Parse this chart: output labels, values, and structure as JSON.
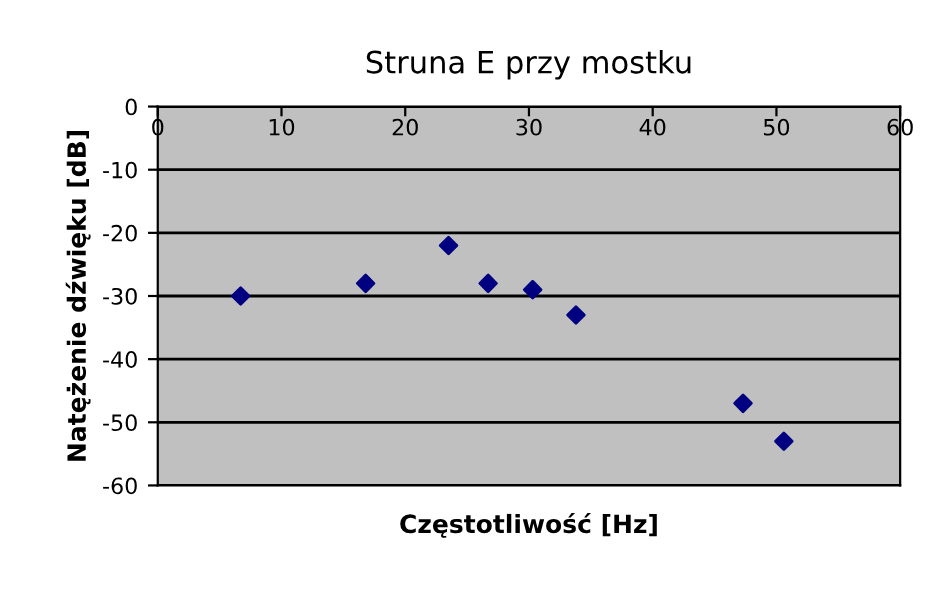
{
  "chart_data": {
    "type": "scatter",
    "title": "Struna E przy mostku",
    "xlabel": "Częstotliwość [Hz]",
    "ylabel": "Natężenie dźwięku [dB]",
    "x": [
      6.7,
      16.8,
      23.5,
      26.7,
      30.3,
      33.8,
      47.3,
      50.6
    ],
    "series": [
      {
        "color": "#000080",
        "values": [
          -30,
          -28,
          -22,
          -28,
          -29,
          -33,
          -47,
          -53
        ]
      }
    ],
    "xlim": [
      0,
      60
    ],
    "xticks": [
      0,
      10,
      20,
      30,
      40,
      50,
      60
    ],
    "ylim": [
      -60,
      0
    ],
    "yticks": [
      -60,
      -50,
      -40,
      -30,
      -20,
      -10,
      0
    ],
    "grid": "y",
    "marker": "diamond"
  }
}
